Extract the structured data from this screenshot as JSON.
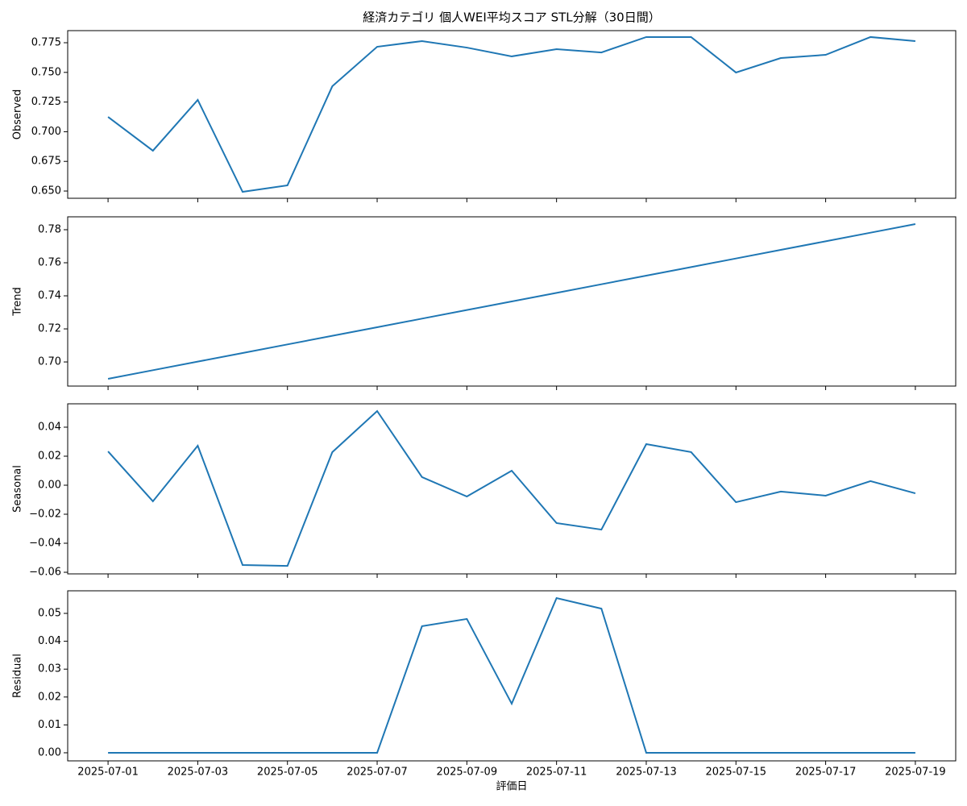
{
  "chart_data": [
    {
      "type": "line",
      "title": "経済カテゴリ 個人WEI平均スコア STL分解（30日間）",
      "ylabel": "Observed",
      "x": [
        "2025-07-01",
        "2025-07-02",
        "2025-07-03",
        "2025-07-04",
        "2025-07-05",
        "2025-07-06",
        "2025-07-07",
        "2025-07-08",
        "2025-07-09",
        "2025-07-10",
        "2025-07-11",
        "2025-07-12",
        "2025-07-13",
        "2025-07-14",
        "2025-07-15",
        "2025-07-16",
        "2025-07-17",
        "2025-07-18",
        "2025-07-19"
      ],
      "values": [
        0.7125,
        0.684,
        0.7268,
        0.6493,
        0.6548,
        0.7383,
        0.7716,
        0.7764,
        0.7709,
        0.7635,
        0.7696,
        0.7668,
        0.7798,
        0.7798,
        0.7499,
        0.7621,
        0.7648,
        0.7798,
        0.7764
      ],
      "color": "#1f77b4",
      "ylim": [
        0.6439,
        0.7852
      ],
      "yticks": [
        {
          "value": 0.65,
          "label": "0.650"
        },
        0.675,
        {
          "value": 0.7,
          "label": "0.700"
        },
        0.725,
        {
          "value": 0.75,
          "label": "0.750"
        },
        0.775
      ]
    },
    {
      "type": "line",
      "ylabel": "Trend",
      "x": [
        "2025-07-01",
        "2025-07-02",
        "2025-07-03",
        "2025-07-04",
        "2025-07-05",
        "2025-07-06",
        "2025-07-07",
        "2025-07-08",
        "2025-07-09",
        "2025-07-10",
        "2025-07-11",
        "2025-07-12",
        "2025-07-13",
        "2025-07-14",
        "2025-07-15",
        "2025-07-16",
        "2025-07-17",
        "2025-07-18",
        "2025-07-19"
      ],
      "values": [
        0.6898,
        0.695,
        0.7002,
        0.7054,
        0.7106,
        0.7158,
        0.721,
        0.7262,
        0.7314,
        0.7366,
        0.7418,
        0.747,
        0.7522,
        0.7574,
        0.7626,
        0.7678,
        0.773,
        0.7782,
        0.7834
      ],
      "color": "#1f77b4",
      "ylim": [
        0.6854,
        0.7878
      ],
      "yticks": [
        {
          "value": 0.7,
          "label": "0.70"
        },
        0.72,
        0.74,
        0.76,
        0.78
      ]
    },
    {
      "type": "line",
      "ylabel": "Seasonal",
      "x": [
        "2025-07-01",
        "2025-07-02",
        "2025-07-03",
        "2025-07-04",
        "2025-07-05",
        "2025-07-06",
        "2025-07-07",
        "2025-07-08",
        "2025-07-09",
        "2025-07-10",
        "2025-07-11",
        "2025-07-12",
        "2025-07-13",
        "2025-07-14",
        "2025-07-15",
        "2025-07-16",
        "2025-07-17",
        "2025-07-18",
        "2025-07-19"
      ],
      "values": [
        0.0233,
        -0.0111,
        0.0272,
        -0.055,
        -0.0556,
        0.0228,
        0.0511,
        0.0056,
        -0.0078,
        0.01,
        -0.0261,
        -0.0306,
        0.0283,
        0.0228,
        -0.0117,
        -0.0044,
        -0.0072,
        0.0028,
        -0.0056
      ],
      "color": "#1f77b4",
      "ylim": [
        -0.0611,
        0.0561
      ],
      "yticks": [
        {
          "value": -0.06,
          "label": "−0.06"
        },
        {
          "value": -0.04,
          "label": "−0.04"
        },
        {
          "value": -0.02,
          "label": "−0.02"
        },
        {
          "value": 0,
          "label": "0.00"
        },
        0.02,
        0.04
      ]
    },
    {
      "type": "line",
      "ylabel": "Residual",
      "xlabel": "評価日",
      "x": [
        "2025-07-01",
        "2025-07-02",
        "2025-07-03",
        "2025-07-04",
        "2025-07-05",
        "2025-07-06",
        "2025-07-07",
        "2025-07-08",
        "2025-07-09",
        "2025-07-10",
        "2025-07-11",
        "2025-07-12",
        "2025-07-13",
        "2025-07-14",
        "2025-07-15",
        "2025-07-16",
        "2025-07-17",
        "2025-07-18",
        "2025-07-19"
      ],
      "values": [
        0,
        0,
        0,
        0,
        0,
        0,
        0,
        0.0454,
        0.048,
        0.0176,
        0.0555,
        0.0517,
        0,
        0,
        0,
        0,
        0,
        0,
        0
      ],
      "color": "#1f77b4",
      "ylim": [
        -0.0029,
        0.0581
      ],
      "yticks": [
        {
          "value": 0,
          "label": "0.00"
        },
        0.01,
        0.02,
        0.03,
        0.04,
        0.05
      ],
      "xticks": [
        "2025-07-01",
        "2025-07-03",
        "2025-07-05",
        "2025-07-07",
        "2025-07-09",
        "2025-07-11",
        "2025-07-13",
        "2025-07-15",
        "2025-07-17",
        "2025-07-19"
      ]
    }
  ]
}
